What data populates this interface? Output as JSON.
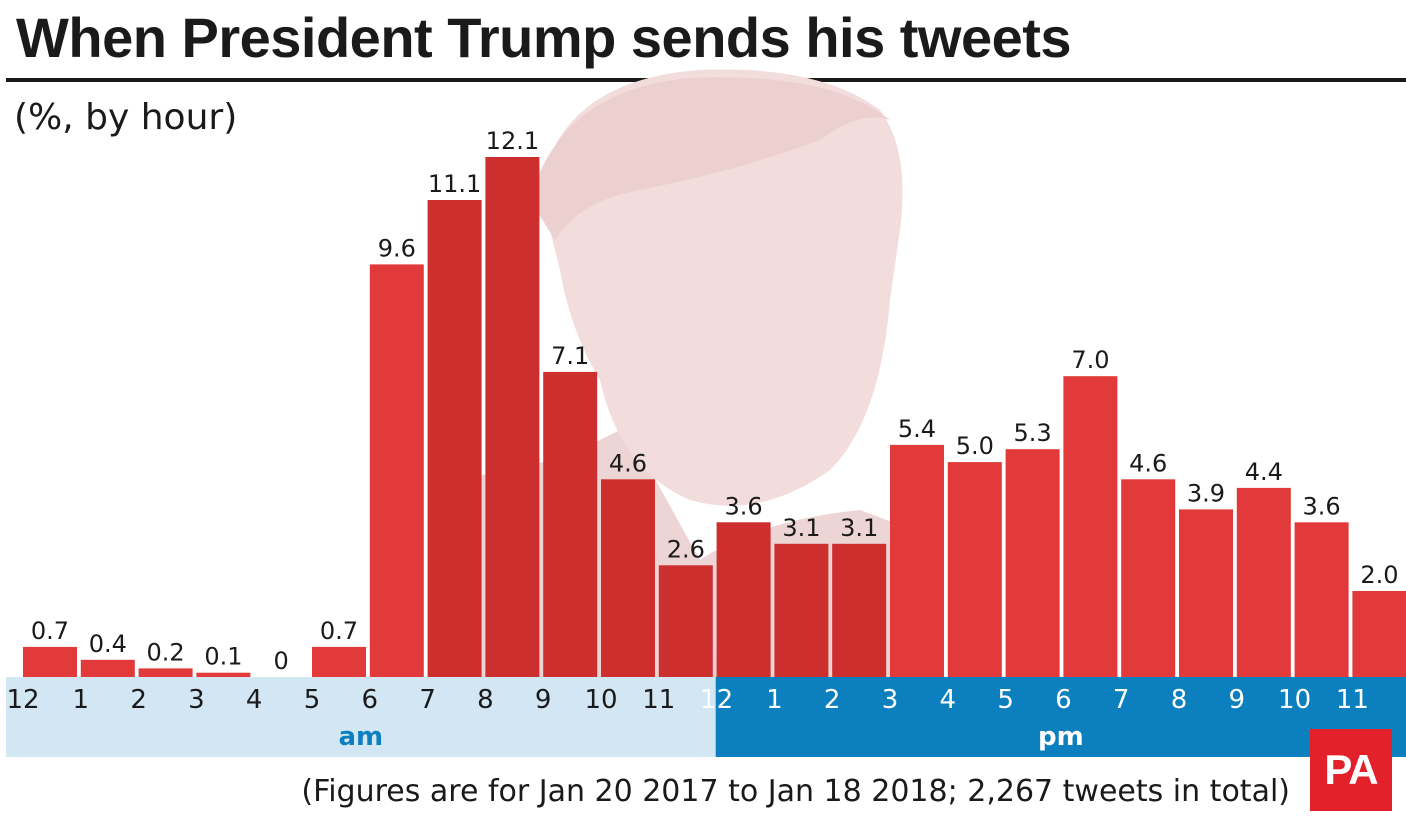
{
  "header": {
    "title": "When President Trump sends his tweets",
    "subtitle": "(%, by hour)"
  },
  "footer": {
    "note": "(Figures are for Jan 20 2017 to Jan 18 2018; 2,267 tweets in total)",
    "logo_text": "PA"
  },
  "colors": {
    "bar": "#e23a3a",
    "bar_over_photo": "#cd2f2f",
    "am_band": "#d2e6f4",
    "pm_band": "#0c7fbf",
    "am_text": "#0c7fbf",
    "pm_text": "#ffffff",
    "photo_tint": "#f3dcdc",
    "logo": "#e2212b"
  },
  "chart_data": {
    "type": "bar",
    "ylabel": "(%, by hour)",
    "categories": [
      "12",
      "1",
      "2",
      "3",
      "4",
      "5",
      "6",
      "7",
      "8",
      "9",
      "10",
      "11",
      "12",
      "1",
      "2",
      "3",
      "4",
      "5",
      "6",
      "7",
      "8",
      "9",
      "10",
      "11"
    ],
    "values": [
      0.7,
      0.4,
      0.2,
      0.1,
      0,
      0.7,
      9.6,
      11.1,
      12.1,
      7.1,
      4.6,
      2.6,
      3.6,
      3.1,
      3.1,
      5.4,
      5.0,
      5.3,
      7.0,
      4.6,
      3.9,
      4.4,
      3.6,
      2.0
    ],
    "value_labels": [
      "0.7",
      "0.4",
      "0.2",
      "0.1",
      "0",
      "0.7",
      "9.6",
      "11.1",
      "12.1",
      "7.1",
      "4.6",
      "2.6",
      "3.6",
      "3.1",
      "3.1",
      "5.4",
      "5.0",
      "5.3",
      "7.0",
      "4.6",
      "3.9",
      "4.4",
      "3.6",
      "2.0"
    ],
    "hour_ticks": {
      "am": [
        "12",
        "1",
        "2",
        "3",
        "4",
        "5",
        "6",
        "7",
        "8",
        "9",
        "10",
        "11"
      ],
      "pm": [
        "12",
        "1",
        "2",
        "3",
        "4",
        "5",
        "6",
        "7",
        "8",
        "9",
        "10",
        "11"
      ]
    },
    "period_labels": {
      "am": "am",
      "pm": "pm"
    },
    "ylim": [
      0,
      12.1
    ],
    "grid": false,
    "legend": "none"
  }
}
